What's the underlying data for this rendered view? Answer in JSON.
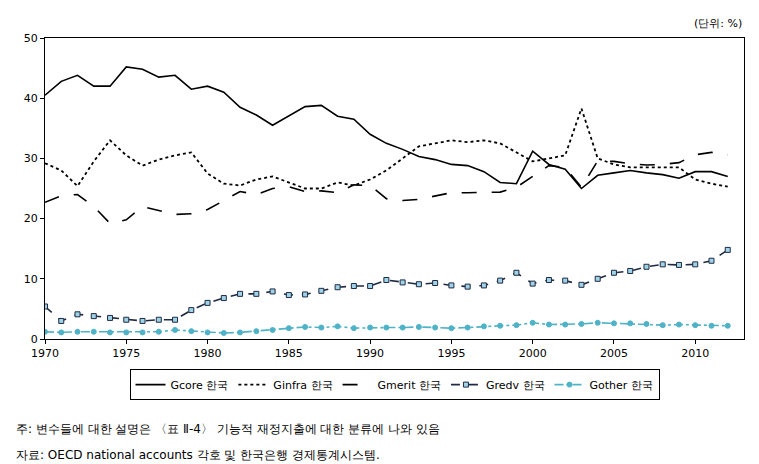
{
  "chart_data": {
    "type": "line",
    "ylabel": "(단위: %)",
    "annotations": [
      "주: 변수들에 대한 설명은 〈표 Ⅱ-4〉 기능적 재정지출에 대한 분류에 나와 있음",
      "자료: OECD national accounts 각호 및 한국은행 경제통계시스템."
    ],
    "x": [
      1970,
      1971,
      1972,
      1973,
      1974,
      1975,
      1976,
      1977,
      1978,
      1979,
      1980,
      1981,
      1982,
      1983,
      1984,
      1985,
      1986,
      1987,
      1988,
      1989,
      1990,
      1991,
      1992,
      1993,
      1994,
      1995,
      1996,
      1997,
      1998,
      1999,
      2000,
      2001,
      2002,
      2003,
      2004,
      2005,
      2006,
      2007,
      2008,
      2009,
      2010,
      2011,
      2012
    ],
    "xlim": [
      1970,
      2013
    ],
    "xticks": [
      1970,
      1975,
      1980,
      1985,
      1990,
      1995,
      2000,
      2005,
      2010
    ],
    "ylim": [
      0,
      50
    ],
    "yticks": [
      0,
      10,
      20,
      30,
      40,
      50
    ],
    "grid": false,
    "legend": "bottom",
    "series": [
      {
        "name": "Gcore 한국",
        "color": "#000000",
        "line_style": "solid",
        "marker": "none",
        "values": [
          40.5,
          42.8,
          43.8,
          42,
          42,
          45.2,
          44.8,
          43.5,
          43.8,
          41.5,
          42,
          41,
          38.5,
          37.2,
          35.5,
          37,
          38.6,
          38.8,
          37,
          36.5,
          34,
          32.5,
          31.5,
          30.3,
          29.8,
          29,
          28.8,
          27.8,
          26,
          25.8,
          31.2,
          29,
          28.2,
          25,
          27.2,
          27.6,
          28,
          27.6,
          27.3,
          26.7,
          27.8,
          27.8,
          27
        ]
      },
      {
        "name": "Ginfra 한국",
        "color": "#000000",
        "line_style": "dot",
        "marker": "none",
        "values": [
          29.2,
          28,
          25.4,
          29.5,
          33,
          30.5,
          28.8,
          29.8,
          30.5,
          31,
          27.5,
          25.8,
          25.5,
          26.5,
          27,
          26,
          25,
          25,
          26,
          25.5,
          26.5,
          28,
          30,
          32,
          32.5,
          33,
          32.7,
          33,
          32.5,
          31,
          29.5,
          30,
          30.5,
          38.3,
          30,
          29,
          28.5,
          28.5,
          28.5,
          28.5,
          26.5,
          25.8,
          25.3
        ]
      },
      {
        "name": "Gmerit 한국",
        "color": "#000000",
        "line_style": "longdash",
        "marker": "none",
        "values": [
          22.7,
          23.8,
          24,
          22,
          19.2,
          19.8,
          22,
          21.4,
          20.7,
          20.8,
          21.5,
          23,
          24.5,
          24,
          25,
          25.3,
          24.5,
          24.6,
          24.3,
          25.6,
          25.5,
          23.3,
          23,
          23.2,
          23.8,
          24.3,
          24.3,
          24.3,
          24.4,
          25.2,
          27,
          28.8,
          28.5,
          25.2,
          29.6,
          29.5,
          29.1,
          28.9,
          29,
          29.3,
          30.6,
          31,
          30.6
        ]
      },
      {
        "name": "Gredv 한국",
        "color": "#1f2a44",
        "line_style": "dash",
        "marker": "square",
        "values": [
          5.4,
          3,
          4.1,
          3.8,
          3.5,
          3.2,
          3,
          3.2,
          3.2,
          4.8,
          6,
          6.8,
          7.5,
          7.5,
          7.9,
          7.3,
          7.4,
          8,
          8.6,
          8.8,
          8.8,
          9.8,
          9.4,
          9.1,
          9.3,
          8.9,
          8.7,
          8.9,
          9.7,
          11,
          9.2,
          9.8,
          9.7,
          9,
          10,
          11,
          11.3,
          12,
          12.4,
          12.3,
          12.4,
          13,
          14.8
        ]
      },
      {
        "name": "Gother 한국",
        "color": "#4fb3c8",
        "line_style": "dashdot",
        "marker": "circle",
        "values": [
          1.2,
          1.1,
          1.2,
          1.2,
          1.1,
          1.1,
          1.1,
          1.2,
          1.5,
          1.3,
          1.1,
          1,
          1.1,
          1.3,
          1.5,
          1.8,
          2,
          1.9,
          2.1,
          1.8,
          1.9,
          1.9,
          1.9,
          2,
          1.9,
          1.8,
          1.9,
          2.1,
          2.2,
          2.3,
          2.7,
          2.4,
          2.4,
          2.5,
          2.7,
          2.6,
          2.6,
          2.5,
          2.3,
          2.4,
          2.3,
          2.2,
          2.2
        ]
      }
    ]
  }
}
